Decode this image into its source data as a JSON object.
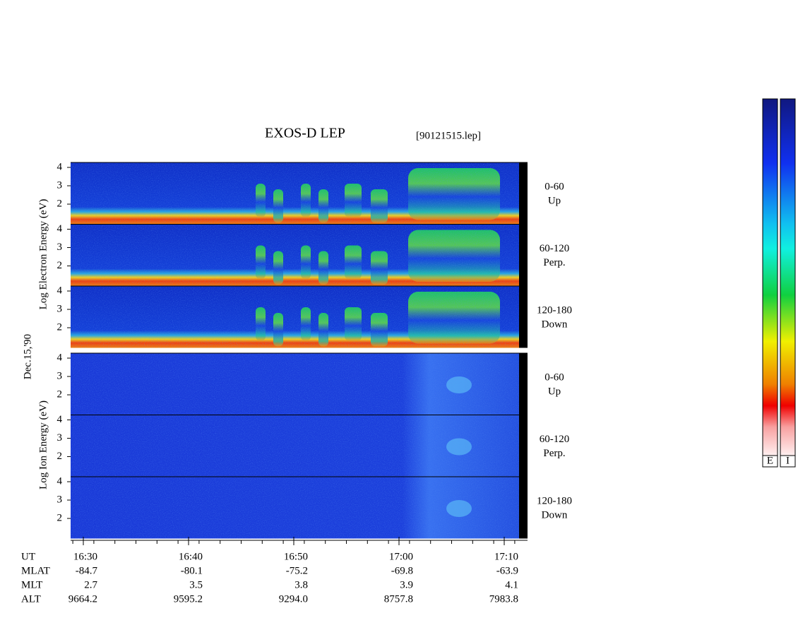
{
  "title": "EXOS-D LEP",
  "file": "[90121515.lep]",
  "date": "Dec.15,'90",
  "yticks": [
    4,
    3,
    2
  ],
  "electron": {
    "label": "Log  Electron  Energy (eV)",
    "panels": [
      {
        "range": "0-60",
        "dir": "Up"
      },
      {
        "range": "60-120",
        "dir": "Perp."
      },
      {
        "range": "120-180",
        "dir": "Down"
      }
    ]
  },
  "ion": {
    "label": "Log  Ion  Energy (eV)",
    "panels": [
      {
        "range": "0-60",
        "dir": "Up"
      },
      {
        "range": "60-120",
        "dir": "Perp."
      },
      {
        "range": "120-180",
        "dir": "Down"
      }
    ]
  },
  "table": {
    "rows": [
      {
        "name": "UT",
        "values": [
          "16:30",
          "16:40",
          "16:50",
          "17:00",
          "17:10"
        ]
      },
      {
        "name": "MLAT",
        "values": [
          "-84.7",
          "-80.1",
          "-75.2",
          "-69.8",
          "-63.9"
        ]
      },
      {
        "name": "MLT",
        "values": [
          "2.7",
          "3.5",
          "3.8",
          "3.9",
          "4.1"
        ]
      },
      {
        "name": "ALT",
        "values": [
          "9664.2",
          "9595.2",
          "9294.0",
          "8757.8",
          "7983.8"
        ]
      }
    ]
  },
  "colorbars": [
    "E",
    "I"
  ]
}
